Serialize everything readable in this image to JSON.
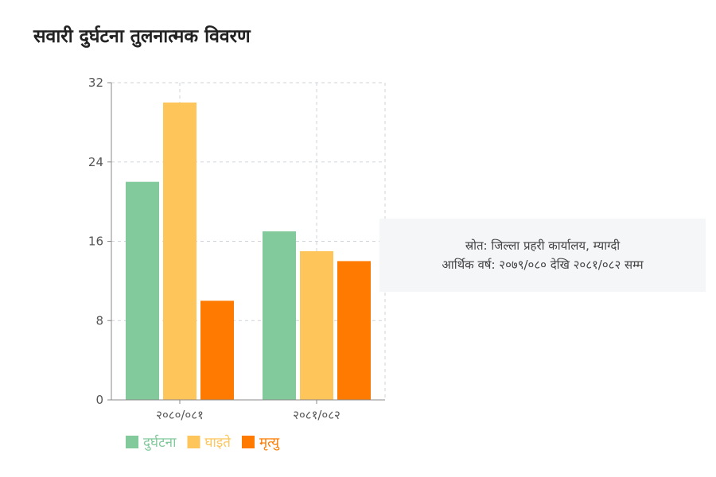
{
  "page": {
    "title": "सवारी दुर्घटना तुलनात्मक विवरण"
  },
  "source_note": {
    "line1": "स्रोत: जिल्ला प्रहरी कार्यालय, म्याग्दी",
    "line2": "आर्थिक वर्ष: २०७९/०८० देखि २०८१/०८२ सम्म"
  },
  "chart_data": {
    "type": "bar",
    "title": "",
    "xlabel": "",
    "ylabel": "",
    "categories": [
      "२०८०/०८१",
      "२०८१/०८२"
    ],
    "series": [
      {
        "name": "दुर्घटना",
        "color": "#82c99b",
        "values": [
          22,
          17
        ]
      },
      {
        "name": "घाइते",
        "color": "#fec55a",
        "values": [
          30,
          15
        ]
      },
      {
        "name": "मृत्यु",
        "color": "#ff7a00",
        "values": [
          10,
          14
        ]
      }
    ],
    "ylim": [
      0,
      32
    ],
    "yticks": [
      0,
      8,
      16,
      24,
      32
    ],
    "grid": true,
    "legend_position": "bottom-left"
  }
}
